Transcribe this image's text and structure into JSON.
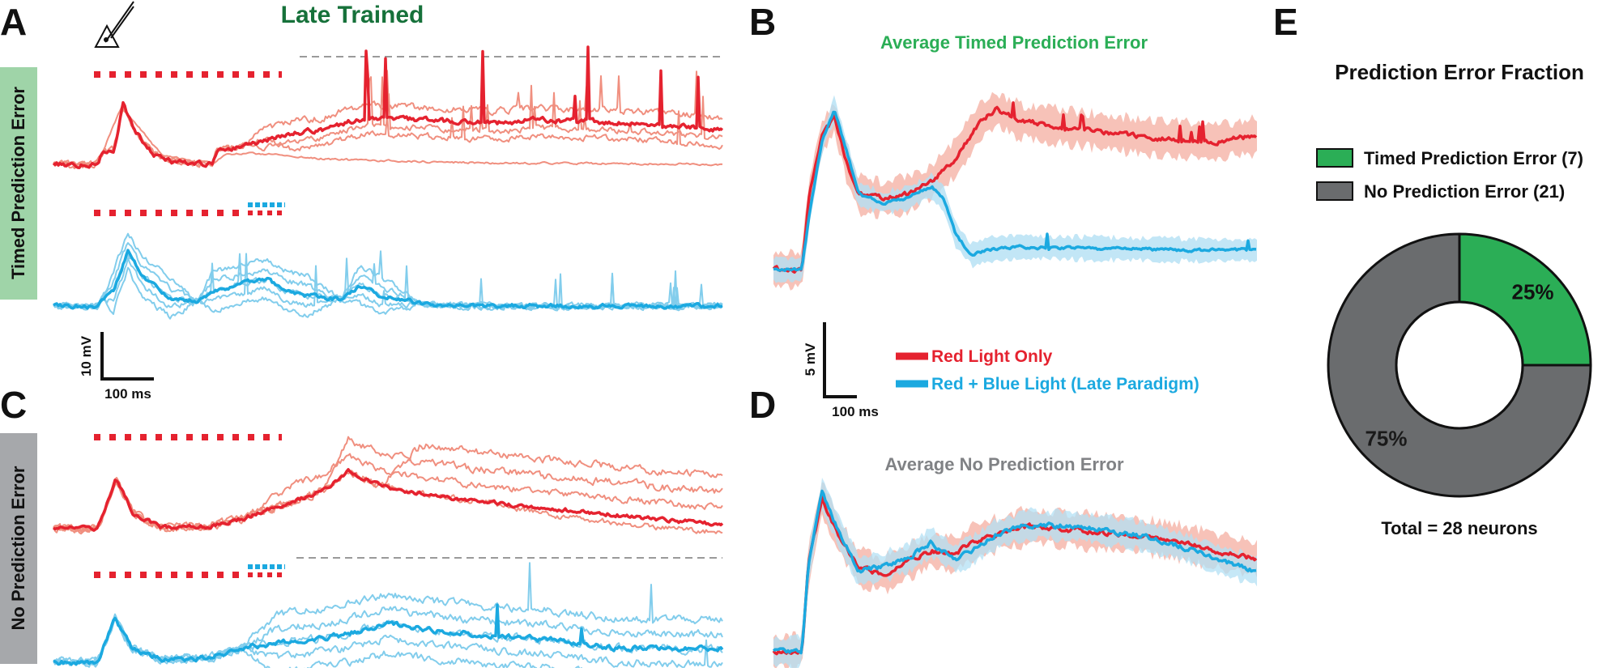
{
  "figure": {
    "panel_letters": {
      "A": "A",
      "B": "B",
      "C": "C",
      "D": "D",
      "E": "E"
    },
    "panel_a_title": "Late Trained",
    "side_label_top": "Timed Prediction Error",
    "side_label_bottom": "No Prediction Error",
    "scale_a": {
      "y_label": "10 mV",
      "x_label": "100 ms"
    },
    "scale_b": {
      "y_label": "5 mV",
      "x_label": "100 ms"
    },
    "panel_b_title": "Average Timed Prediction Error",
    "panel_d_title": "Average No Prediction Error",
    "legend_traces": {
      "red": "Red Light Only",
      "blue": "Red + Blue Light (Late Paradigm)"
    },
    "panel_e_title": "Prediction Error Fraction",
    "panel_e_total": "Total = 28 neurons",
    "colors": {
      "red": "#e5222f",
      "red_light": "#f08f7f",
      "red_band": "#f6b7ab",
      "blue": "#1ba9e0",
      "blue_light": "#82cdec",
      "blue_band": "#b3e0f4",
      "green": "#2bae56",
      "green_text": "#2a9a4c",
      "green_dark": "#16713a",
      "gray_dark": "#6a6c6e",
      "gray_text": "#808285",
      "side_green": "#9fd4a8",
      "side_gray": "#a6a8ab"
    }
  },
  "chart_data": [
    {
      "type": "pie",
      "title": "Prediction Error Fraction",
      "categories": [
        "Timed Prediction Error (7)",
        "No Prediction Error (21)"
      ],
      "values": [
        7,
        21
      ],
      "percent_labels": [
        "25%",
        "75%"
      ],
      "colors": [
        "#2bae56",
        "#6a6c6e"
      ],
      "annotation": "Total = 28 neurons",
      "legend": "top"
    }
  ]
}
